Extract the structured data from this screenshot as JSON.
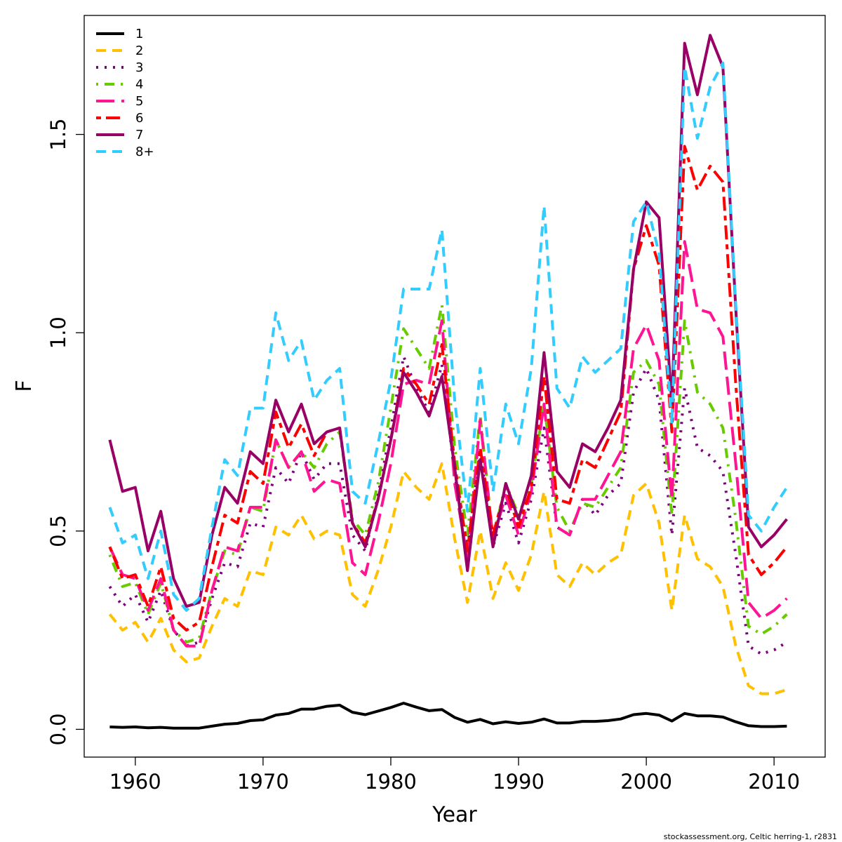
{
  "chart_data": {
    "type": "line",
    "xlabel": "Year",
    "ylabel": "F",
    "xlim": [
      1956,
      2014
    ],
    "ylim": [
      -0.07,
      1.8
    ],
    "xticks": [
      1960,
      1970,
      1980,
      1990,
      2000,
      2010
    ],
    "yticks": [
      0.0,
      0.5,
      1.0,
      1.5
    ],
    "ytick_labels": [
      "0.0",
      "0.5",
      "1.0",
      "1.5"
    ],
    "grid": false,
    "legend_position": "top-left",
    "x": [
      1958,
      1959,
      1960,
      1961,
      1962,
      1963,
      1964,
      1965,
      1966,
      1967,
      1968,
      1969,
      1970,
      1971,
      1972,
      1973,
      1974,
      1975,
      1976,
      1977,
      1978,
      1979,
      1980,
      1981,
      1982,
      1983,
      1984,
      1985,
      1986,
      1987,
      1988,
      1989,
      1990,
      1991,
      1992,
      1993,
      1994,
      1995,
      1996,
      1997,
      1998,
      1999,
      2000,
      2001,
      2002,
      2003,
      2004,
      2005,
      2006,
      2007,
      2008,
      2009,
      2010,
      2011
    ],
    "series": [
      {
        "name": "1",
        "color": "#000000",
        "dash": "solid",
        "values": [
          0.006,
          0.005,
          0.006,
          0.004,
          0.005,
          0.003,
          0.003,
          0.003,
          0.008,
          0.013,
          0.015,
          0.022,
          0.024,
          0.036,
          0.04,
          0.051,
          0.051,
          0.058,
          0.061,
          0.043,
          0.037,
          0.046,
          0.055,
          0.066,
          0.056,
          0.047,
          0.05,
          0.03,
          0.018,
          0.025,
          0.014,
          0.019,
          0.015,
          0.018,
          0.026,
          0.016,
          0.016,
          0.02,
          0.02,
          0.022,
          0.026,
          0.037,
          0.04,
          0.036,
          0.021,
          0.04,
          0.034,
          0.034,
          0.031,
          0.019,
          0.009,
          0.007,
          0.007,
          0.008
        ]
      },
      {
        "name": "2",
        "color": "#ffc000",
        "dash": "dashed",
        "values": [
          0.29,
          0.25,
          0.27,
          0.22,
          0.28,
          0.2,
          0.17,
          0.18,
          0.26,
          0.33,
          0.31,
          0.4,
          0.39,
          0.51,
          0.49,
          0.54,
          0.48,
          0.5,
          0.49,
          0.34,
          0.31,
          0.4,
          0.51,
          0.65,
          0.61,
          0.58,
          0.67,
          0.48,
          0.32,
          0.5,
          0.33,
          0.42,
          0.35,
          0.44,
          0.6,
          0.39,
          0.36,
          0.42,
          0.39,
          0.42,
          0.44,
          0.59,
          0.62,
          0.52,
          0.3,
          0.54,
          0.43,
          0.41,
          0.36,
          0.21,
          0.11,
          0.09,
          0.09,
          0.1
        ]
      },
      {
        "name": "3",
        "color": "#7f007f",
        "dash": "dotted",
        "values": [
          0.36,
          0.31,
          0.34,
          0.27,
          0.35,
          0.25,
          0.21,
          0.22,
          0.33,
          0.42,
          0.41,
          0.52,
          0.51,
          0.66,
          0.62,
          0.7,
          0.63,
          0.67,
          0.67,
          0.49,
          0.45,
          0.59,
          0.76,
          0.94,
          0.86,
          0.8,
          0.92,
          0.64,
          0.46,
          0.7,
          0.46,
          0.57,
          0.47,
          0.58,
          0.76,
          0.51,
          0.49,
          0.58,
          0.54,
          0.59,
          0.62,
          0.85,
          0.91,
          0.83,
          0.49,
          0.86,
          0.71,
          0.69,
          0.65,
          0.44,
          0.21,
          0.19,
          0.2,
          0.22
        ]
      },
      {
        "name": "4",
        "color": "#66cc00",
        "dash": "dotdash",
        "values": [
          0.44,
          0.36,
          0.37,
          0.29,
          0.37,
          0.25,
          0.22,
          0.23,
          0.35,
          0.45,
          0.44,
          0.56,
          0.55,
          0.73,
          0.66,
          0.7,
          0.66,
          0.72,
          0.75,
          0.53,
          0.49,
          0.62,
          0.81,
          1.01,
          0.96,
          0.91,
          1.07,
          0.71,
          0.49,
          0.79,
          0.48,
          0.62,
          0.54,
          0.62,
          0.82,
          0.56,
          0.5,
          0.57,
          0.56,
          0.61,
          0.66,
          0.9,
          0.93,
          0.87,
          0.54,
          1.03,
          0.85,
          0.82,
          0.76,
          0.53,
          0.26,
          0.24,
          0.26,
          0.29
        ]
      },
      {
        "name": "5",
        "color": "#ff1493",
        "dash": "longdash",
        "values": [
          0.46,
          0.39,
          0.38,
          0.3,
          0.38,
          0.25,
          0.21,
          0.21,
          0.35,
          0.46,
          0.45,
          0.56,
          0.56,
          0.73,
          0.66,
          0.7,
          0.6,
          0.63,
          0.62,
          0.42,
          0.39,
          0.52,
          0.67,
          0.87,
          0.88,
          0.87,
          1.03,
          0.62,
          0.43,
          0.78,
          0.48,
          0.59,
          0.49,
          0.6,
          0.82,
          0.51,
          0.49,
          0.58,
          0.58,
          0.64,
          0.7,
          0.96,
          1.02,
          0.93,
          0.58,
          1.23,
          1.06,
          1.05,
          0.99,
          0.67,
          0.32,
          0.28,
          0.3,
          0.33
        ]
      },
      {
        "name": "6",
        "color": "#ff0000",
        "dash": "twodash",
        "values": [
          0.46,
          0.38,
          0.39,
          0.31,
          0.41,
          0.28,
          0.25,
          0.27,
          0.41,
          0.54,
          0.52,
          0.65,
          0.62,
          0.8,
          0.71,
          0.77,
          0.69,
          0.75,
          0.76,
          0.52,
          0.47,
          0.58,
          0.73,
          0.91,
          0.87,
          0.82,
          0.97,
          0.67,
          0.45,
          0.71,
          0.49,
          0.61,
          0.51,
          0.61,
          0.89,
          0.58,
          0.57,
          0.68,
          0.66,
          0.73,
          0.8,
          1.16,
          1.27,
          1.17,
          0.75,
          1.47,
          1.36,
          1.42,
          1.38,
          0.87,
          0.44,
          0.39,
          0.42,
          0.46
        ]
      },
      {
        "name": "7",
        "color": "#990066",
        "dash": "solid",
        "values": [
          0.73,
          0.6,
          0.61,
          0.45,
          0.55,
          0.38,
          0.31,
          0.32,
          0.49,
          0.61,
          0.57,
          0.7,
          0.67,
          0.83,
          0.75,
          0.82,
          0.72,
          0.75,
          0.76,
          0.52,
          0.46,
          0.58,
          0.73,
          0.9,
          0.85,
          0.79,
          0.89,
          0.66,
          0.4,
          0.68,
          0.46,
          0.62,
          0.53,
          0.64,
          0.95,
          0.65,
          0.61,
          0.72,
          0.7,
          0.76,
          0.83,
          1.16,
          1.33,
          1.29,
          0.82,
          1.73,
          1.6,
          1.75,
          1.67,
          1.06,
          0.51,
          0.46,
          0.49,
          0.53
        ]
      },
      {
        "name": "8+",
        "color": "#33ccff",
        "dash": "dashed",
        "values": [
          0.56,
          0.47,
          0.49,
          0.38,
          0.5,
          0.34,
          0.3,
          0.33,
          0.51,
          0.68,
          0.64,
          0.81,
          0.81,
          1.05,
          0.93,
          0.98,
          0.83,
          0.88,
          0.91,
          0.6,
          0.57,
          0.72,
          0.88,
          1.11,
          1.11,
          1.11,
          1.26,
          0.83,
          0.55,
          0.91,
          0.6,
          0.82,
          0.72,
          0.91,
          1.32,
          0.86,
          0.81,
          0.94,
          0.9,
          0.93,
          0.96,
          1.28,
          1.33,
          1.2,
          0.77,
          1.67,
          1.49,
          1.62,
          1.68,
          1.07,
          0.54,
          0.5,
          0.56,
          0.61
        ]
      }
    ]
  },
  "credit": "stockassessment.org, Celtic  herring-1, r2831"
}
